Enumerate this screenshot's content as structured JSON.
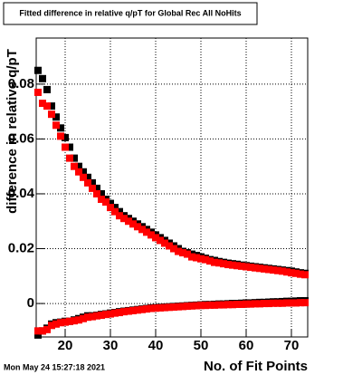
{
  "chart_data": {
    "type": "scatter",
    "title": "Fitted difference in relative q/pT for Global Rec All NoHits",
    "x_label": "No. of Fit Points",
    "y_label": "difference in relative q/pT",
    "timestamp": "Mon May 24 15:27:18 2021",
    "x": [
      14,
      15,
      16,
      17,
      18,
      19,
      20,
      21,
      22,
      23,
      24,
      25,
      26,
      27,
      28,
      29,
      30,
      31,
      32,
      33,
      34,
      35,
      36,
      37,
      38,
      39,
      40,
      41,
      42,
      43,
      44,
      45,
      46,
      47,
      48,
      49,
      50,
      51,
      52,
      53,
      54,
      55,
      56,
      57,
      58,
      59,
      60,
      61,
      62,
      63,
      64,
      65,
      66,
      67,
      68,
      69,
      70,
      71,
      72,
      73
    ],
    "series": [
      {
        "color": "#000000",
        "values": [
          0.085,
          0.082,
          0.078,
          0.072,
          0.068,
          0.064,
          0.0605,
          0.057,
          0.053,
          0.05,
          0.048,
          0.046,
          0.044,
          0.042,
          0.04,
          0.038,
          0.0365,
          0.035,
          0.0335,
          0.032,
          0.031,
          0.03,
          0.029,
          0.028,
          0.027,
          0.026,
          0.025,
          0.024,
          0.023,
          0.022,
          0.021,
          0.02,
          0.019,
          0.0185,
          0.018,
          0.0175,
          0.017,
          0.0165,
          0.016,
          0.0157,
          0.0153,
          0.015,
          0.0147,
          0.0145,
          0.0143,
          0.014,
          0.0138,
          0.0136,
          0.0134,
          0.0132,
          0.013,
          0.0128,
          0.0126,
          0.0124,
          0.0122,
          0.012,
          0.0118,
          0.0115,
          0.0112,
          0.011
        ]
      },
      {
        "color": "#000000",
        "values": [
          -0.0115,
          -0.01,
          -0.009,
          -0.0075,
          -0.007,
          -0.0068,
          -0.0065,
          -0.0065,
          -0.006,
          -0.0055,
          -0.005,
          -0.0045,
          -0.0045,
          -0.0043,
          -0.004,
          -0.0038,
          -0.0035,
          -0.0033,
          -0.003,
          -0.0028,
          -0.0026,
          -0.0024,
          -0.0022,
          -0.002,
          -0.0018,
          -0.0016,
          -0.0015,
          -0.0014,
          -0.0013,
          -0.0012,
          -0.0011,
          -0.001,
          -0.0009,
          -0.0008,
          -0.0007,
          -0.0006,
          -0.0005,
          -0.0004,
          -0.0004,
          -0.0003,
          -0.0002,
          -0.0002,
          -0.0001,
          0,
          0,
          0.0001,
          0.0002,
          0.0002,
          0.0003,
          0.0004,
          0.0004,
          0.0005,
          0.0006,
          0.0006,
          0.0007,
          0.0008,
          0.0008,
          0.0009,
          0.001,
          0.001
        ]
      },
      {
        "color": "#ff0000",
        "values": [
          0.077,
          0.073,
          0.072,
          0.069,
          0.065,
          0.061,
          0.057,
          0.053,
          0.05,
          0.048,
          0.046,
          0.044,
          0.042,
          0.04,
          0.038,
          0.037,
          0.035,
          0.0335,
          0.032,
          0.031,
          0.03,
          0.029,
          0.028,
          0.027,
          0.026,
          0.025,
          0.024,
          0.023,
          0.022,
          0.021,
          0.02,
          0.019,
          0.0185,
          0.018,
          0.017,
          0.0167,
          0.0163,
          0.016,
          0.0155,
          0.015,
          0.0148,
          0.0145,
          0.0142,
          0.014,
          0.0138,
          0.0136,
          0.0134,
          0.0132,
          0.013,
          0.0128,
          0.0126,
          0.0124,
          0.0122,
          0.012,
          0.0118,
          0.0115,
          0.0112,
          0.011,
          0.0107,
          0.0105
        ]
      },
      {
        "color": "#ff0000",
        "values": [
          -0.01,
          -0.01,
          -0.0095,
          -0.008,
          -0.0075,
          -0.007,
          -0.0068,
          -0.0065,
          -0.0063,
          -0.006,
          -0.0055,
          -0.005,
          -0.0048,
          -0.0045,
          -0.0043,
          -0.004,
          -0.0038,
          -0.0035,
          -0.0033,
          -0.003,
          -0.0028,
          -0.0026,
          -0.0024,
          -0.0022,
          -0.002,
          -0.0018,
          -0.0017,
          -0.0016,
          -0.0015,
          -0.0014,
          -0.0013,
          -0.0012,
          -0.0011,
          -0.001,
          -0.0009,
          -0.0008,
          -0.0007,
          -0.0007,
          -0.0006,
          -0.0006,
          -0.0005,
          -0.0005,
          -0.0004,
          -0.0004,
          -0.0003,
          -0.0003,
          -0.0002,
          -0.0002,
          -0.0001,
          -0.0001,
          0,
          0,
          0.0001,
          0.0001,
          0.0001,
          0.0002,
          0.0002,
          0.0002,
          0.0003,
          0.0003
        ]
      }
    ],
    "xlim": [
      13.6,
      73.6
    ],
    "xticks": [
      20,
      30,
      40,
      50,
      60,
      70
    ],
    "ylim": [
      -0.0122,
      0.0968
    ],
    "yticks": [
      0,
      0.02,
      0.04,
      0.06,
      0.08
    ],
    "grid": true,
    "marker": "square"
  }
}
